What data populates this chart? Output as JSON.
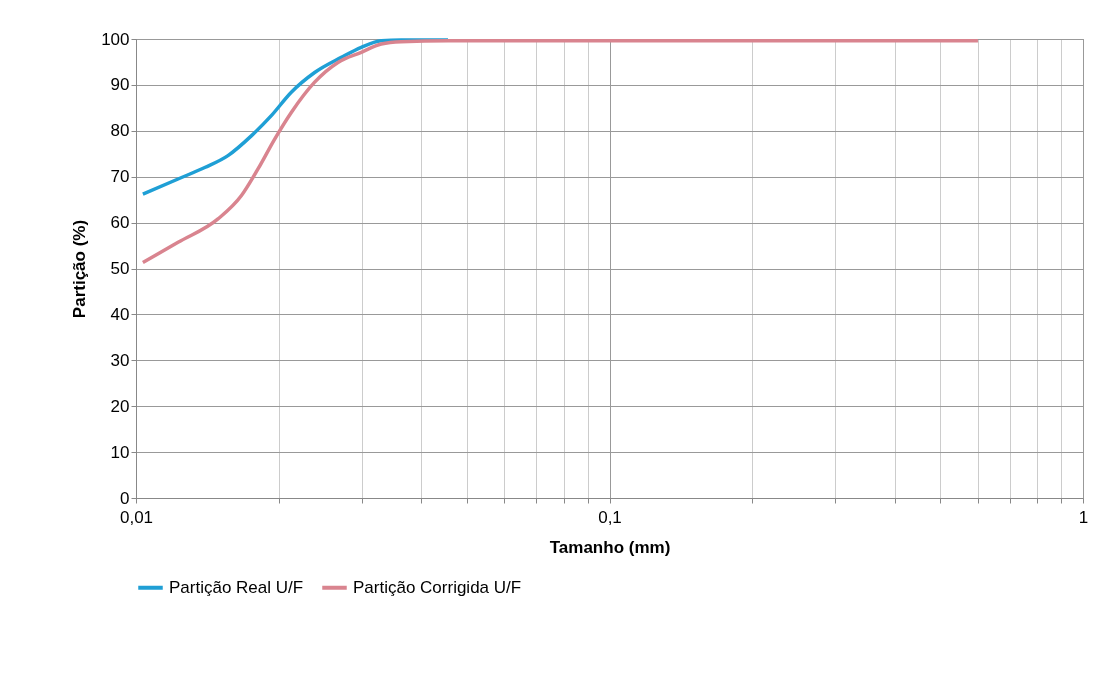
{
  "chart_data": {
    "type": "line",
    "xlabel": "Tamanho (mm)",
    "ylabel": "Partição  (%)",
    "xlim": [
      0.01,
      1
    ],
    "ylim": [
      0,
      100
    ],
    "xticks": [
      {
        "value": 0.01,
        "label": "0,01"
      },
      {
        "value": 0.02,
        "label": null
      },
      {
        "value": 0.03,
        "label": null
      },
      {
        "value": 0.04,
        "label": null
      },
      {
        "value": 0.05,
        "label": null
      },
      {
        "value": 0.06,
        "label": null
      },
      {
        "value": 0.07,
        "label": null
      },
      {
        "value": 0.08,
        "label": null
      },
      {
        "value": 0.09,
        "label": null
      },
      {
        "value": 0.1,
        "label": "0,1"
      },
      {
        "value": 0.2,
        "label": null
      },
      {
        "value": 0.3,
        "label": null
      },
      {
        "value": 0.4,
        "label": null
      },
      {
        "value": 0.5,
        "label": null
      },
      {
        "value": 0.6,
        "label": null
      },
      {
        "value": 0.7,
        "label": null
      },
      {
        "value": 0.8,
        "label": null
      },
      {
        "value": 0.9,
        "label": null
      },
      {
        "value": 1,
        "label": "1"
      }
    ],
    "yticks": [
      0,
      10,
      20,
      30,
      40,
      50,
      60,
      70,
      80,
      90,
      100
    ],
    "log": "x",
    "grid": true,
    "legend": "bottom",
    "marker": "none",
    "line_style": "solid",
    "series": [
      {
        "name": "Partição Real U/F",
        "color": "#1f9fd5",
        "x": [
          0.01034,
          0.01227,
          0.01397,
          0.01564,
          0.01752,
          0.01931,
          0.02128,
          0.02384,
          0.02714,
          0.02991,
          0.03296,
          0.0363,
          0.0456
        ],
        "values": [
          66.2,
          69.5,
          72.0,
          74.6,
          78.9,
          83.3,
          88.4,
          92.7,
          96.0,
          98.2,
          99.6,
          99.8,
          99.8
        ]
      },
      {
        "name": "Partição Corrigida U/F",
        "color": "#d9848f",
        "x": [
          0.01034,
          0.01227,
          0.0149,
          0.0167,
          0.0181,
          0.01963,
          0.02128,
          0.02384,
          0.0267,
          0.02991,
          0.03296,
          0.0363,
          0.0456,
          0.6
        ],
        "values": [
          51.3,
          55.7,
          60.8,
          65.9,
          71.7,
          78.2,
          84.0,
          90.6,
          94.9,
          97.1,
          98.9,
          99.4,
          99.6,
          99.6
        ]
      }
    ]
  }
}
